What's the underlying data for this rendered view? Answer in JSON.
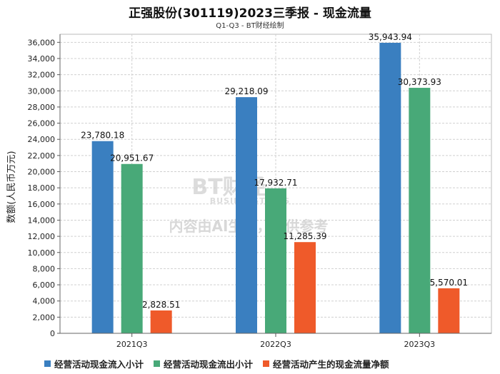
{
  "chart_data": {
    "type": "bar",
    "title": "正强股份(301119)2023三季报 - 现金流量",
    "subtitle": "Q1-Q3 - BT财经绘制",
    "ylabel": "数额(人民币万元)",
    "xlabel": "",
    "ylim": [
      0,
      37000
    ],
    "ytick_step": 2000,
    "grid": true,
    "legend_position": "bottom",
    "categories": [
      "2021Q3",
      "2022Q3",
      "2023Q3"
    ],
    "series": [
      {
        "name": "经营活动现金流入小计",
        "color": "#3a7fc0",
        "values": [
          23780.18,
          29218.09,
          35943.94
        ],
        "labels": [
          "23,780.18",
          "29,218.09",
          "35,943.94"
        ]
      },
      {
        "name": "经营活动现金流出小计",
        "color": "#48a978",
        "values": [
          20951.67,
          17932.71,
          30373.93
        ],
        "labels": [
          "20,951.67",
          "17,932.71",
          "30,373.93"
        ]
      },
      {
        "name": "经营活动产生的现金流量净额",
        "color": "#ef5a2a",
        "values": [
          2828.51,
          11285.39,
          5570.01
        ],
        "labels": [
          "2,828.51",
          "11,285.39",
          "5,570.01"
        ]
      }
    ]
  },
  "watermark": {
    "logo_text": "BT财经",
    "logo_sub": "BUSINESSTIMES",
    "notice": "内容由AI生成，仅供参考"
  }
}
